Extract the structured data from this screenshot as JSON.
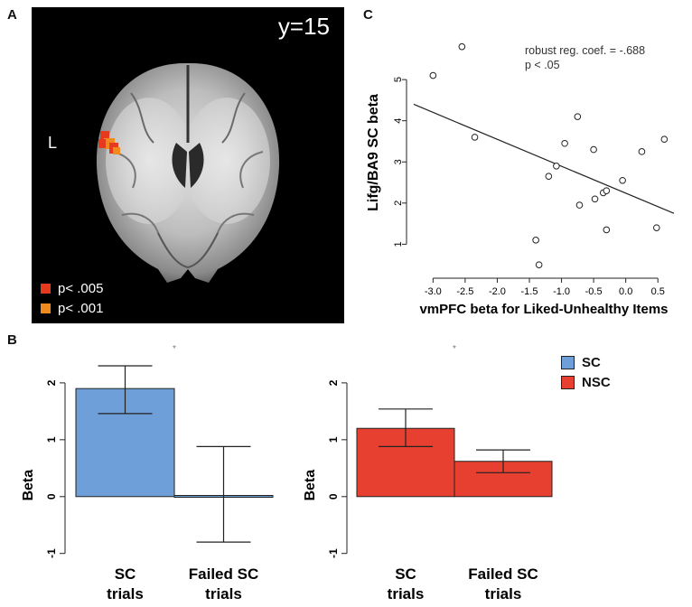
{
  "panels": {
    "a": {
      "letter": "A",
      "slice_label": "y=15",
      "side_label": "L",
      "legend": [
        {
          "label": "p< .005",
          "color": "#e63a1f"
        },
        {
          "label": "p< .001",
          "color": "#f08a1e"
        }
      ]
    },
    "b": {
      "letter": "B"
    },
    "c": {
      "letter": "C"
    }
  },
  "chart_data": [
    {
      "type": "scatter",
      "panel": "C",
      "title": "",
      "xlabel": "vmPFC beta for Liked-Unhealthy Items",
      "ylabel": "Lifg/BA9 SC beta",
      "xlim": [
        -3.3,
        0.75
      ],
      "ylim": [
        0.35,
        6.1
      ],
      "xticks": [
        "-3.0",
        "-2.5",
        "-2.0",
        "-1.5",
        "-1.0",
        "-0.5",
        "0.0",
        "0.5"
      ],
      "xtick_values": [
        -3.0,
        -2.5,
        -2.0,
        -1.5,
        -1.0,
        -0.5,
        0.0,
        0.5
      ],
      "yticks": [
        "1",
        "2",
        "3",
        "4",
        "5"
      ],
      "ytick_values": [
        1,
        2,
        3,
        4,
        5
      ],
      "annotations": [
        "robust reg. coef. = -.688",
        "p < .05"
      ],
      "points": [
        {
          "x": -3.0,
          "y": 5.1
        },
        {
          "x": -2.55,
          "y": 5.8
        },
        {
          "x": -2.35,
          "y": 3.6
        },
        {
          "x": -1.35,
          "y": 0.5
        },
        {
          "x": -1.4,
          "y": 1.1
        },
        {
          "x": -1.2,
          "y": 2.65
        },
        {
          "x": -1.08,
          "y": 2.9
        },
        {
          "x": -0.95,
          "y": 3.45
        },
        {
          "x": -0.75,
          "y": 4.1
        },
        {
          "x": -0.72,
          "y": 1.95
        },
        {
          "x": -0.5,
          "y": 3.3
        },
        {
          "x": -0.48,
          "y": 2.1
        },
        {
          "x": -0.35,
          "y": 2.25
        },
        {
          "x": -0.3,
          "y": 2.3
        },
        {
          "x": -0.3,
          "y": 1.35
        },
        {
          "x": -0.05,
          "y": 2.55
        },
        {
          "x": 0.25,
          "y": 3.25
        },
        {
          "x": 0.48,
          "y": 1.4
        },
        {
          "x": 0.6,
          "y": 3.55
        }
      ],
      "fit_line": {
        "x": [
          -3.3,
          0.75
        ],
        "y": [
          4.4,
          1.75
        ]
      },
      "grid": false
    },
    {
      "type": "bar",
      "panel": "B-left",
      "categories": [
        "SC trials",
        "Failed SC trials"
      ],
      "category_lines": [
        [
          "SC",
          "trials"
        ],
        [
          "Failed SC",
          "trials"
        ]
      ],
      "values": [
        1.9,
        0.02
      ],
      "error_upper": [
        2.3,
        0.88
      ],
      "error_lower": [
        1.46,
        -0.8
      ],
      "colors": [
        "#6f9fd8",
        "#6f9fd8"
      ],
      "ylabel": "Beta",
      "xlabel": "",
      "ylim": [
        -1.1,
        2.3
      ],
      "yticks": [
        "-1",
        "0",
        "1",
        "2"
      ],
      "ytick_values": [
        -1,
        0,
        1,
        2
      ],
      "significance": "*"
    },
    {
      "type": "bar",
      "panel": "B-right",
      "categories": [
        "SC trials",
        "Failed SC trials"
      ],
      "category_lines": [
        [
          "SC",
          "trials"
        ],
        [
          "Failed SC",
          "trials"
        ]
      ],
      "values": [
        1.2,
        0.62
      ],
      "error_upper": [
        1.54,
        0.82
      ],
      "error_lower": [
        0.88,
        0.42
      ],
      "colors": [
        "#e84030",
        "#e84030"
      ],
      "ylabel": "Beta",
      "xlabel": "",
      "ylim": [
        -1.1,
        2.3
      ],
      "yticks": [
        "-1",
        "0",
        "1",
        "2"
      ],
      "ytick_values": [
        -1,
        0,
        1,
        2
      ],
      "significance": "*"
    }
  ],
  "bar_legend": [
    {
      "label": "SC",
      "color": "#6f9fd8"
    },
    {
      "label": "NSC",
      "color": "#e84030"
    }
  ]
}
